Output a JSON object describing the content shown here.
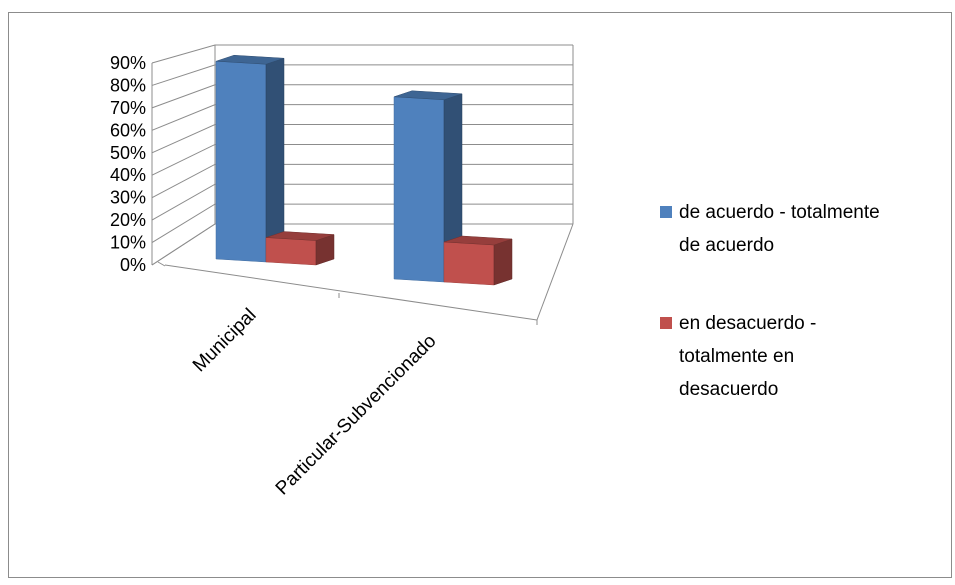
{
  "chart_data": {
    "type": "bar",
    "title": "",
    "xlabel": "",
    "ylabel": "",
    "categories": [
      "Municipal",
      "Particular-Subvencionado"
    ],
    "series": [
      {
        "name": "de acuerdo - totalmente de acuerdo",
        "values": [
          0.89,
          0.82
        ],
        "color": "#4f81bd"
      },
      {
        "name": "en desacuerdo - totalmente en desacuerdo",
        "values": [
          0.11,
          0.18
        ],
        "color": "#c0504d"
      }
    ],
    "ylim": [
      0,
      0.9
    ],
    "y_ticks": [
      "0%",
      "10%",
      "20%",
      "30%",
      "40%",
      "50%",
      "60%",
      "70%",
      "80%",
      "90%"
    ],
    "grid": true,
    "three_d": true,
    "legend_position": "right",
    "legend_lines": [
      [
        "de acuerdo - totalmente",
        "de acuerdo"
      ],
      [
        "en desacuerdo -",
        "totalmente en",
        "desacuerdo"
      ]
    ]
  }
}
